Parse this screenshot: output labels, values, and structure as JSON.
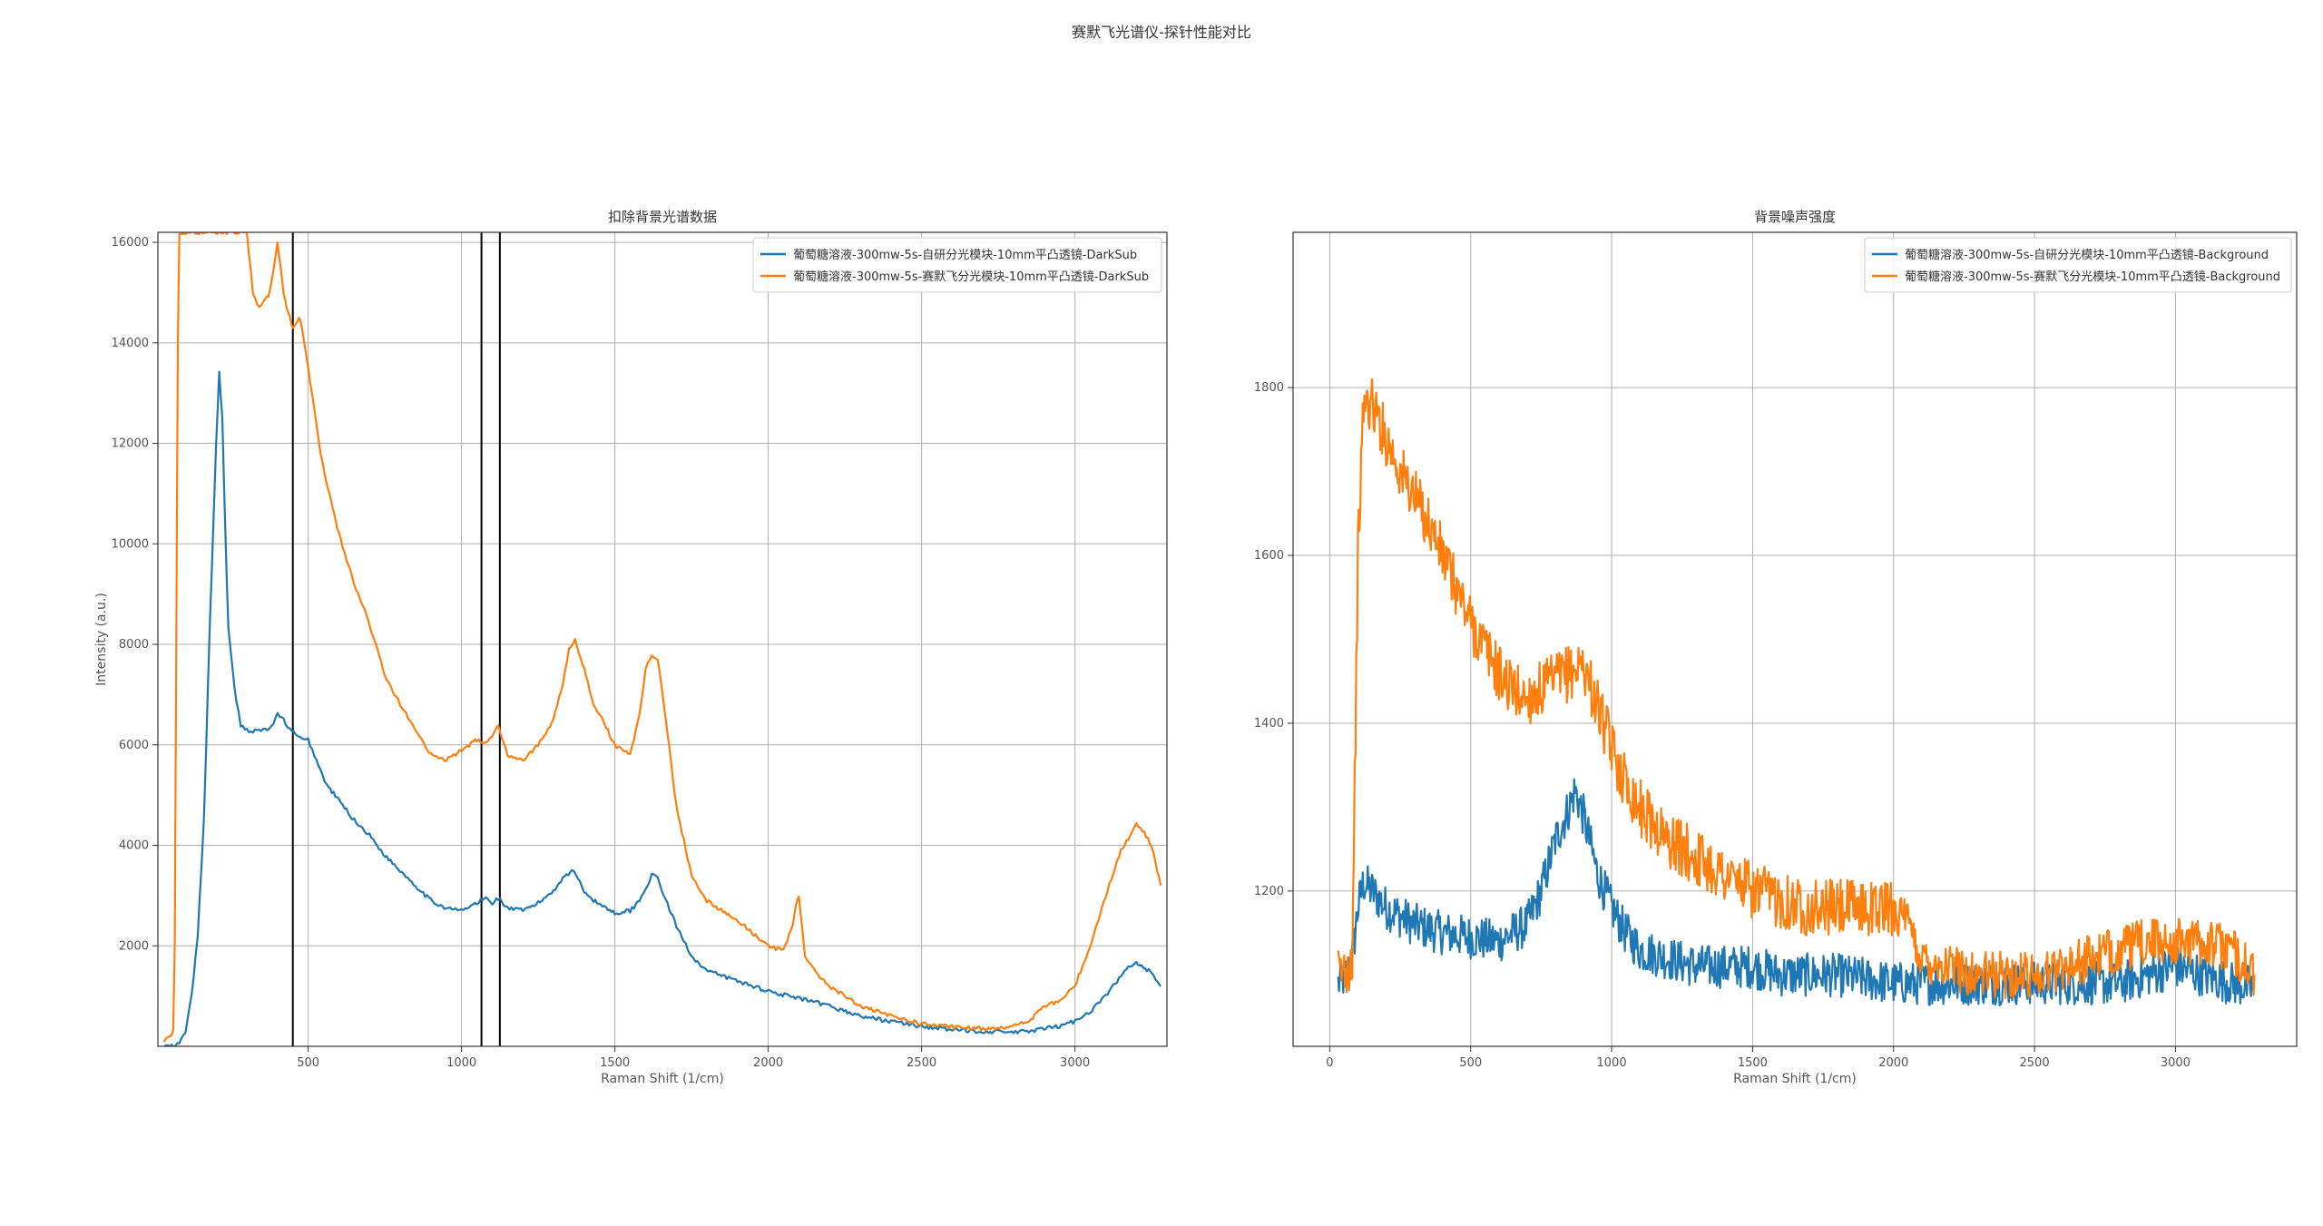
{
  "figure": {
    "suptitle": "赛默飞光谱仪-探针性能对比",
    "colors": {
      "series_blue": "#1f77b4",
      "series_orange": "#ff7f0e",
      "marker_line": "#000000",
      "grid": "#b0b0b0"
    }
  },
  "chart_data": [
    {
      "type": "line",
      "title": "扣除背景光谱数据",
      "xlabel": "Raman Shift (1/cm)",
      "ylabel": "Intensity (a.u.)",
      "xlim": [
        10,
        3300
      ],
      "ylim": [
        0,
        16200
      ],
      "xticks": [
        500,
        1000,
        1500,
        2000,
        2500,
        3000
      ],
      "yticks": [
        2000,
        4000,
        6000,
        8000,
        10000,
        12000,
        14000,
        16000
      ],
      "grid": true,
      "legend_position": "upper right",
      "vlines": [
        450,
        1065,
        1125
      ],
      "series": [
        {
          "name": "葡萄糖溶液-300mw-5s-自研分光模块-10mm平凸透镜-DarkSub",
          "color": "#1f77b4",
          "x": [
            30,
            60,
            80,
            100,
            120,
            140,
            160,
            180,
            200,
            210,
            220,
            230,
            240,
            260,
            280,
            300,
            320,
            340,
            360,
            380,
            400,
            420,
            440,
            460,
            480,
            500,
            520,
            540,
            560,
            600,
            650,
            700,
            750,
            800,
            850,
            900,
            950,
            1000,
            1050,
            1080,
            1100,
            1120,
            1150,
            1200,
            1250,
            1300,
            1330,
            1360,
            1380,
            1400,
            1430,
            1460,
            1500,
            1550,
            1580,
            1600,
            1620,
            1640,
            1660,
            1700,
            1750,
            1800,
            1900,
            2000,
            2100,
            2200,
            2300,
            2400,
            2500,
            2600,
            2700,
            2800,
            2850,
            2900,
            2950,
            3000,
            3050,
            3100,
            3150,
            3180,
            3200,
            3240,
            3280
          ],
          "y": [
            0,
            0,
            50,
            300,
            1000,
            2200,
            4500,
            8500,
            12000,
            13400,
            12500,
            10200,
            8300,
            7100,
            6400,
            6300,
            6250,
            6300,
            6300,
            6350,
            6600,
            6500,
            6300,
            6200,
            6100,
            6100,
            5800,
            5500,
            5200,
            4900,
            4500,
            4200,
            3800,
            3500,
            3200,
            2900,
            2750,
            2700,
            2850,
            2950,
            2850,
            2950,
            2750,
            2700,
            2850,
            3100,
            3350,
            3500,
            3350,
            3100,
            2900,
            2800,
            2650,
            2700,
            2900,
            3150,
            3400,
            3350,
            3000,
            2400,
            1800,
            1500,
            1300,
            1100,
            950,
            800,
            600,
            500,
            400,
            330,
            300,
            280,
            300,
            350,
            400,
            500,
            700,
            1000,
            1400,
            1600,
            1650,
            1500,
            1200
          ]
        },
        {
          "name": "葡萄糖溶液-300mw-5s-赛默飞分光模块-10mm平凸透镜-DarkSub",
          "color": "#ff7f0e",
          "x": [
            30,
            50,
            60,
            65,
            70,
            75,
            80,
            90,
            300,
            320,
            340,
            360,
            370,
            380,
            390,
            400,
            410,
            420,
            430,
            440,
            450,
            460,
            470,
            480,
            500,
            520,
            540,
            560,
            600,
            650,
            700,
            750,
            800,
            850,
            900,
            950,
            1000,
            1050,
            1080,
            1100,
            1120,
            1150,
            1200,
            1250,
            1300,
            1330,
            1350,
            1370,
            1400,
            1430,
            1460,
            1500,
            1550,
            1580,
            1600,
            1620,
            1640,
            1660,
            1700,
            1750,
            1800,
            1900,
            2000,
            2050,
            2080,
            2090,
            2100,
            2110,
            2120,
            2150,
            2200,
            2300,
            2400,
            2500,
            2600,
            2700,
            2800,
            2850,
            2900,
            2950,
            3000,
            3050,
            3100,
            3150,
            3180,
            3200,
            3220,
            3250,
            3280
          ],
          "y": [
            100,
            200,
            300,
            2000,
            8000,
            14000,
            16200,
            16200,
            16200,
            15000,
            14700,
            14900,
            14900,
            15200,
            15600,
            16000,
            15500,
            15000,
            14700,
            14500,
            14300,
            14400,
            14500,
            14300,
            13500,
            12700,
            11800,
            11200,
            10200,
            9200,
            8400,
            7400,
            6800,
            6300,
            5800,
            5700,
            5900,
            6100,
            6050,
            6200,
            6400,
            5800,
            5700,
            6000,
            6500,
            7200,
            7900,
            8100,
            7500,
            6800,
            6500,
            6000,
            5800,
            6600,
            7500,
            7800,
            7700,
            6800,
            4800,
            3400,
            2900,
            2500,
            2000,
            1900,
            2400,
            2800,
            3000,
            2400,
            1800,
            1500,
            1200,
            800,
            600,
            450,
            380,
            350,
            400,
            500,
            800,
            900,
            1200,
            2000,
            3000,
            3900,
            4200,
            4400,
            4300,
            4000,
            3200
          ]
        }
      ]
    },
    {
      "type": "line",
      "title": "背景噪声强度",
      "xlabel": "Raman Shift (1/cm)",
      "ylabel": "",
      "xlim": [
        -130,
        3430
      ],
      "ylim": [
        1015,
        1985
      ],
      "xticks": [
        0,
        500,
        1000,
        1500,
        2000,
        2500,
        3000
      ],
      "yticks": [
        1200,
        1400,
        1600,
        1800
      ],
      "grid": true,
      "legend_position": "upper right",
      "series": [
        {
          "name": "葡萄糖溶液-300mw-5s-自研分光模块-10mm平凸透镜-Background",
          "color": "#1f77b4",
          "x": [
            30,
            60,
            80,
            100,
            120,
            150,
            200,
            300,
            400,
            500,
            600,
            700,
            750,
            800,
            850,
            870,
            900,
            950,
            1000,
            1050,
            1100,
            1200,
            1300,
            1400,
            1500,
            1600,
            1700,
            1800,
            2000,
            2200,
            2400,
            2600,
            2800,
            2900,
            3000,
            3100,
            3200,
            3280
          ],
          "y": [
            1090,
            1100,
            1120,
            1180,
            1210,
            1200,
            1180,
            1160,
            1150,
            1145,
            1140,
            1160,
            1200,
            1260,
            1300,
            1320,
            1290,
            1220,
            1180,
            1150,
            1130,
            1120,
            1110,
            1110,
            1110,
            1100,
            1100,
            1100,
            1090,
            1090,
            1090,
            1090,
            1090,
            1100,
            1110,
            1100,
            1090,
            1085
          ]
        },
        {
          "name": "葡萄糖溶液-300mw-5s-赛默飞分光模块-10mm平凸透镜-Background",
          "color": "#ff7f0e",
          "x": [
            30,
            60,
            80,
            100,
            120,
            150,
            200,
            250,
            300,
            350,
            400,
            450,
            500,
            550,
            600,
            650,
            700,
            750,
            800,
            850,
            900,
            950,
            1000,
            1050,
            1100,
            1200,
            1300,
            1400,
            1500,
            1600,
            1700,
            1800,
            1900,
            2000,
            2050,
            2100,
            2200,
            2300,
            2400,
            2500,
            2600,
            2700,
            2800,
            2900,
            3000,
            3100,
            3200,
            3280
          ],
          "y": [
            1100,
            1110,
            1120,
            1600,
            1780,
            1780,
            1740,
            1700,
            1670,
            1640,
            1600,
            1560,
            1520,
            1490,
            1460,
            1440,
            1430,
            1440,
            1450,
            1460,
            1470,
            1420,
            1370,
            1330,
            1300,
            1260,
            1240,
            1220,
            1200,
            1190,
            1180,
            1180,
            1180,
            1180,
            1160,
            1120,
            1110,
            1100,
            1100,
            1100,
            1110,
            1120,
            1130,
            1140,
            1140,
            1140,
            1130,
            1100
          ]
        }
      ]
    }
  ]
}
